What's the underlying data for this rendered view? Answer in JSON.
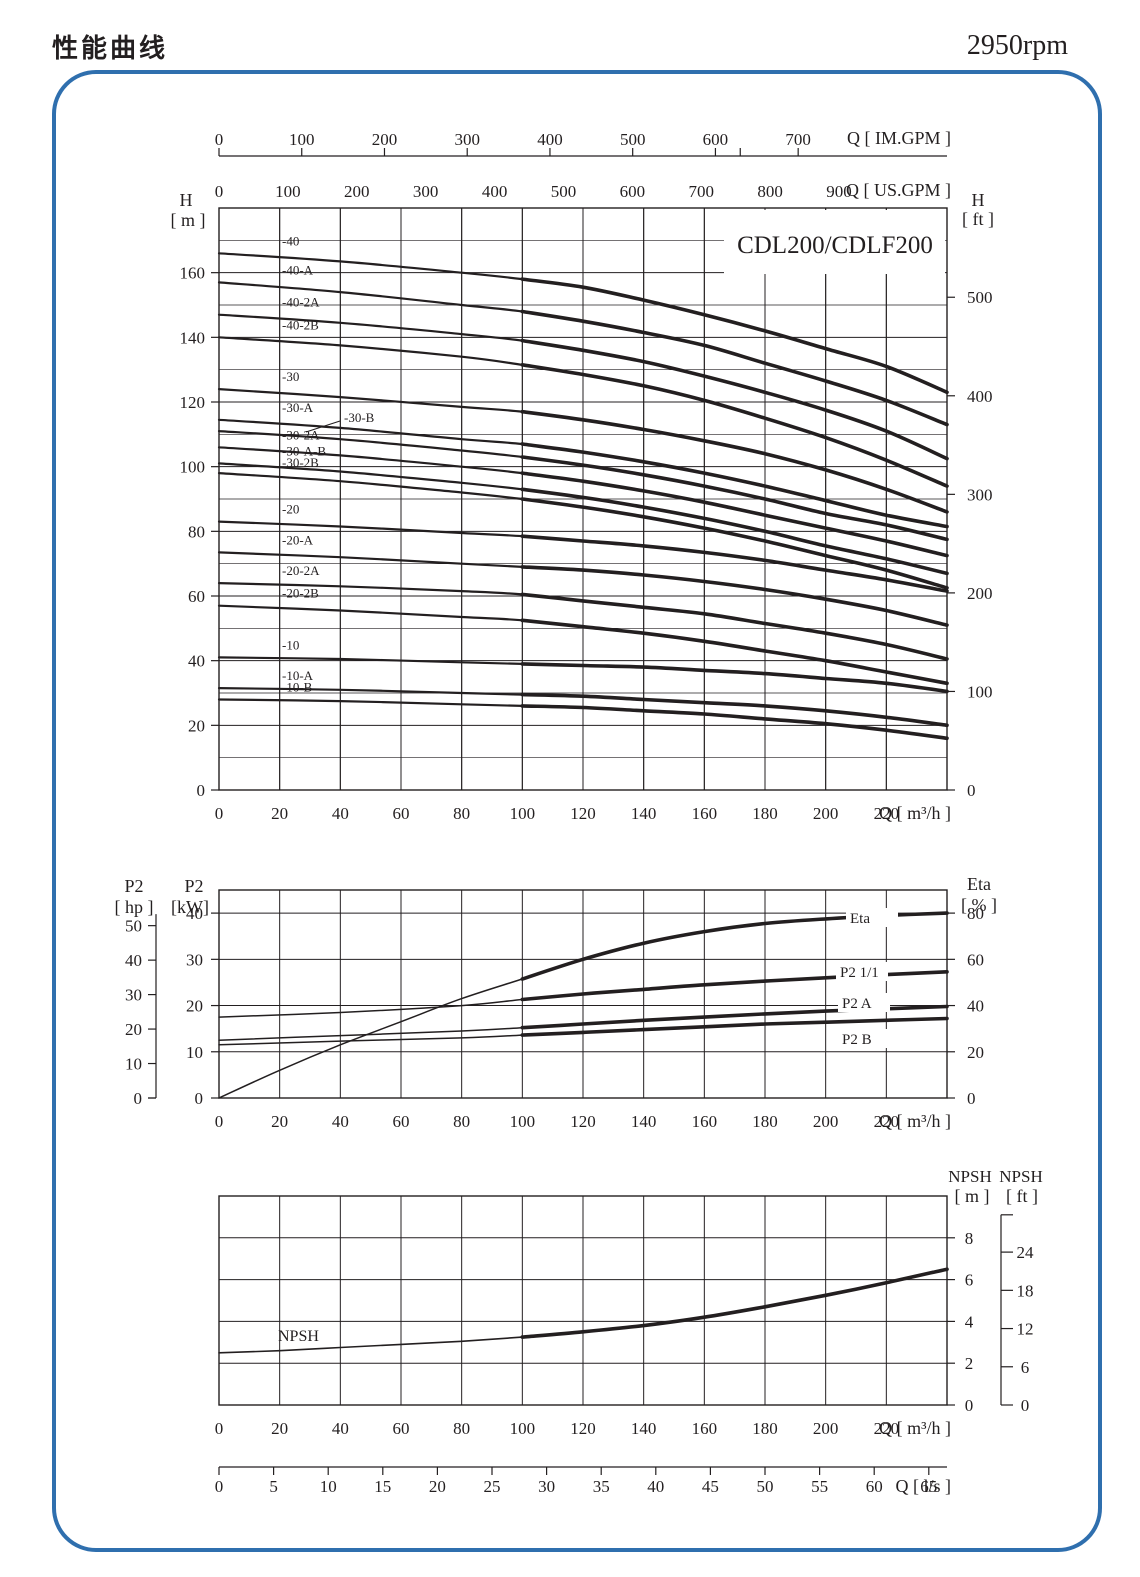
{
  "page": {
    "title": "性能曲线",
    "speed": "2950rpm",
    "frame_color": "#2f6fae"
  },
  "chart_data": [
    {
      "id": "head",
      "type": "line",
      "model_label": "CDL200/CDLF200",
      "x_label": "Q [ m³/h ]",
      "left_axis_label": [
        "H",
        "[ m ]"
      ],
      "right_axis_label": [
        "H",
        "[ ft ]"
      ],
      "x_ticks": [
        0,
        20,
        40,
        60,
        80,
        100,
        120,
        140,
        160,
        180,
        200,
        220
      ],
      "xlim": [
        0,
        240
      ],
      "left_ticks": [
        0,
        20,
        40,
        60,
        80,
        100,
        120,
        140,
        160
      ],
      "ylim": [
        0,
        180
      ],
      "right_ticks": [
        0,
        100,
        200,
        300,
        400,
        500
      ],
      "top_axes": [
        {
          "label": "Q [ US.GPM ]",
          "ticks": [
            0,
            100,
            200,
            300,
            400,
            500,
            600,
            700,
            800,
            900
          ]
        },
        {
          "label": "Q [ IM.GPM ]",
          "ticks": [
            0,
            100,
            200,
            300,
            400,
            500,
            600,
            700
          ]
        }
      ],
      "grid": true,
      "series": [
        {
          "name": "-40",
          "x": [
            0,
            40,
            80,
            100,
            120,
            140,
            160,
            180,
            200,
            220,
            240
          ],
          "y": [
            166,
            163.5,
            160,
            158,
            155.5,
            151.5,
            147,
            142,
            136.5,
            131,
            123
          ]
        },
        {
          "name": "-40-A",
          "x": [
            0,
            40,
            80,
            100,
            120,
            140,
            160,
            180,
            200,
            220,
            240
          ],
          "y": [
            157,
            154,
            150,
            148,
            145,
            141.5,
            137.5,
            132,
            126.5,
            120.5,
            113
          ]
        },
        {
          "name": "-40-2A",
          "x": [
            0,
            40,
            80,
            100,
            120,
            140,
            160,
            180,
            200,
            220,
            240
          ],
          "y": [
            147,
            144.5,
            141,
            139,
            136,
            132.5,
            128,
            123,
            117.5,
            111,
            102.5
          ]
        },
        {
          "name": "-40-2B",
          "x": [
            0,
            40,
            80,
            100,
            120,
            140,
            160,
            180,
            200,
            220,
            240
          ],
          "y": [
            140,
            137.5,
            134,
            131.5,
            128.5,
            125,
            120.5,
            115,
            109,
            102,
            94
          ]
        },
        {
          "name": "-30",
          "x": [
            0,
            40,
            80,
            100,
            120,
            140,
            160,
            180,
            200,
            220,
            240
          ],
          "y": [
            124,
            121.5,
            118.5,
            117,
            114.5,
            111.5,
            108,
            104,
            99,
            93,
            86
          ]
        },
        {
          "name": "-30-A",
          "x": [
            0,
            40,
            80,
            100,
            120,
            140,
            160,
            180,
            200,
            220,
            240
          ],
          "y": [
            114.5,
            112,
            108.5,
            107,
            104.5,
            101.5,
            98,
            94,
            89.5,
            85,
            81.5
          ]
        },
        {
          "name": "-30-B",
          "x": [
            0,
            40,
            80,
            100,
            120,
            140,
            160,
            180,
            200,
            220,
            240
          ],
          "y": [
            111,
            108.5,
            105,
            103,
            100.5,
            97.5,
            94,
            90,
            85.5,
            82,
            77.5
          ]
        },
        {
          "name": "-30-2A",
          "x": [
            0,
            40,
            80,
            100,
            120,
            140,
            160,
            180,
            200,
            220,
            240
          ],
          "y": [
            106,
            103.5,
            100,
            98,
            95.5,
            92.5,
            89,
            85,
            81,
            77,
            72.5
          ]
        },
        {
          "name": "-30-A-B",
          "x": [
            0,
            40,
            80,
            100,
            120,
            140,
            160,
            180,
            200,
            220,
            240
          ],
          "y": [
            101,
            98.5,
            95,
            93,
            90.5,
            87.5,
            84,
            80,
            75.5,
            71.5,
            67
          ]
        },
        {
          "name": "-30-2B",
          "x": [
            0,
            40,
            80,
            100,
            120,
            140,
            160,
            180,
            200,
            220,
            240
          ],
          "y": [
            98,
            95.5,
            92,
            90,
            87.5,
            84.5,
            81,
            77,
            72.5,
            68,
            62.5
          ]
        },
        {
          "name": "-20",
          "x": [
            0,
            40,
            80,
            100,
            120,
            140,
            160,
            180,
            200,
            220,
            240
          ],
          "y": [
            83,
            81.5,
            79.5,
            78.5,
            77,
            75.5,
            73.5,
            71,
            68,
            65,
            61.5
          ]
        },
        {
          "name": "-20-A",
          "x": [
            0,
            40,
            80,
            100,
            120,
            140,
            160,
            180,
            200,
            220,
            240
          ],
          "y": [
            73.5,
            72,
            70,
            69,
            68,
            66.5,
            64.5,
            62,
            59,
            55.5,
            51
          ]
        },
        {
          "name": "-20-2A",
          "x": [
            0,
            40,
            80,
            100,
            120,
            140,
            160,
            180,
            200,
            220,
            240
          ],
          "y": [
            64,
            63,
            61.5,
            60.5,
            58.5,
            56.5,
            54.5,
            51.5,
            48.5,
            45,
            40.5
          ]
        },
        {
          "name": "-20-2B",
          "x": [
            0,
            40,
            80,
            100,
            120,
            140,
            160,
            180,
            200,
            220,
            240
          ],
          "y": [
            57,
            55.5,
            53.5,
            52.5,
            50.5,
            48.5,
            46,
            43,
            40,
            36.5,
            33
          ]
        },
        {
          "name": "-10",
          "x": [
            0,
            40,
            80,
            100,
            120,
            140,
            160,
            180,
            200,
            220,
            240
          ],
          "y": [
            41,
            40.5,
            39.5,
            39,
            38.5,
            38,
            37,
            36,
            34.5,
            33,
            30.5
          ]
        },
        {
          "name": "-10-A",
          "x": [
            0,
            40,
            80,
            100,
            120,
            140,
            160,
            180,
            200,
            220,
            240
          ],
          "y": [
            31.5,
            31,
            30,
            29.5,
            29,
            28,
            27,
            26,
            24.5,
            22.5,
            20
          ]
        },
        {
          "name": "-10-B",
          "x": [
            0,
            40,
            80,
            100,
            120,
            140,
            160,
            180,
            200,
            220,
            240
          ],
          "y": [
            28,
            27.5,
            26.5,
            26,
            25.5,
            24.5,
            23.5,
            22,
            20.5,
            18.5,
            16
          ]
        }
      ]
    },
    {
      "id": "power",
      "type": "line",
      "x_label": "Q [ m³/h ]",
      "left_axis_label_hp": [
        "P2",
        "[ hp ]"
      ],
      "left_axis_label_kw": [
        "P2",
        "[kW]"
      ],
      "right_axis_label": [
        "Eta",
        "[ % ]"
      ],
      "x_ticks": [
        0,
        20,
        40,
        60,
        80,
        100,
        120,
        140,
        160,
        180,
        200,
        220
      ],
      "xlim": [
        0,
        240
      ],
      "kw_ticks": [
        0,
        10,
        20,
        30,
        40
      ],
      "kw_lim": [
        0,
        45
      ],
      "hp_ticks": [
        0,
        10,
        20,
        30,
        40,
        50
      ],
      "eta_ticks": [
        0,
        20,
        40,
        60,
        80
      ],
      "grid": true,
      "series": [
        {
          "name": "Eta",
          "axis": "eta",
          "x": [
            0,
            20,
            40,
            60,
            80,
            100,
            120,
            140,
            160,
            180,
            200,
            220,
            240
          ],
          "y": [
            0,
            12,
            23,
            33,
            43,
            51.5,
            60,
            67,
            72,
            75.5,
            77.5,
            79,
            80
          ]
        },
        {
          "name": "P2 1/1",
          "axis": "kw",
          "x": [
            0,
            40,
            80,
            100,
            120,
            140,
            160,
            180,
            200,
            220,
            240
          ],
          "y": [
            17.5,
            18.5,
            20,
            21.3,
            22.5,
            23.5,
            24.5,
            25.3,
            26,
            26.7,
            27.3
          ]
        },
        {
          "name": "P2 A",
          "axis": "kw",
          "x": [
            0,
            40,
            80,
            100,
            120,
            140,
            160,
            180,
            200,
            220,
            240
          ],
          "y": [
            12.5,
            13.5,
            14.5,
            15.2,
            16,
            16.8,
            17.5,
            18.2,
            18.8,
            19.3,
            19.8
          ]
        },
        {
          "name": "P2 B",
          "axis": "kw",
          "x": [
            0,
            40,
            80,
            100,
            120,
            140,
            160,
            180,
            200,
            220,
            240
          ],
          "y": [
            11.5,
            12.3,
            13,
            13.6,
            14.2,
            14.8,
            15.4,
            16,
            16.4,
            16.8,
            17.2
          ]
        }
      ]
    },
    {
      "id": "npsh",
      "type": "line",
      "x_label": "Q [ m³/h ]",
      "right_axis_label_m": [
        "NPSH",
        "[ m ]"
      ],
      "right_axis_label_ft": [
        "NPSH",
        "[ ft ]"
      ],
      "x_ticks": [
        0,
        20,
        40,
        60,
        80,
        100,
        120,
        140,
        160,
        180,
        200,
        220
      ],
      "xlim": [
        0,
        240
      ],
      "m_ticks": [
        0,
        2,
        4,
        6,
        8
      ],
      "ylim": [
        0,
        10
      ],
      "ft_ticks": [
        0,
        6,
        12,
        18,
        24
      ],
      "ls_axis": {
        "label": "Q [ l/s ]",
        "ticks": [
          0,
          5,
          10,
          15,
          20,
          25,
          30,
          35,
          40,
          45,
          50,
          55,
          60,
          65
        ]
      },
      "grid": true,
      "series": [
        {
          "name": "NPSH",
          "x": [
            0,
            20,
            40,
            60,
            80,
            100,
            120,
            140,
            160,
            180,
            200,
            220,
            240
          ],
          "y": [
            2.5,
            2.6,
            2.75,
            2.9,
            3.05,
            3.25,
            3.5,
            3.8,
            4.2,
            4.7,
            5.25,
            5.85,
            6.5
          ]
        }
      ]
    }
  ]
}
